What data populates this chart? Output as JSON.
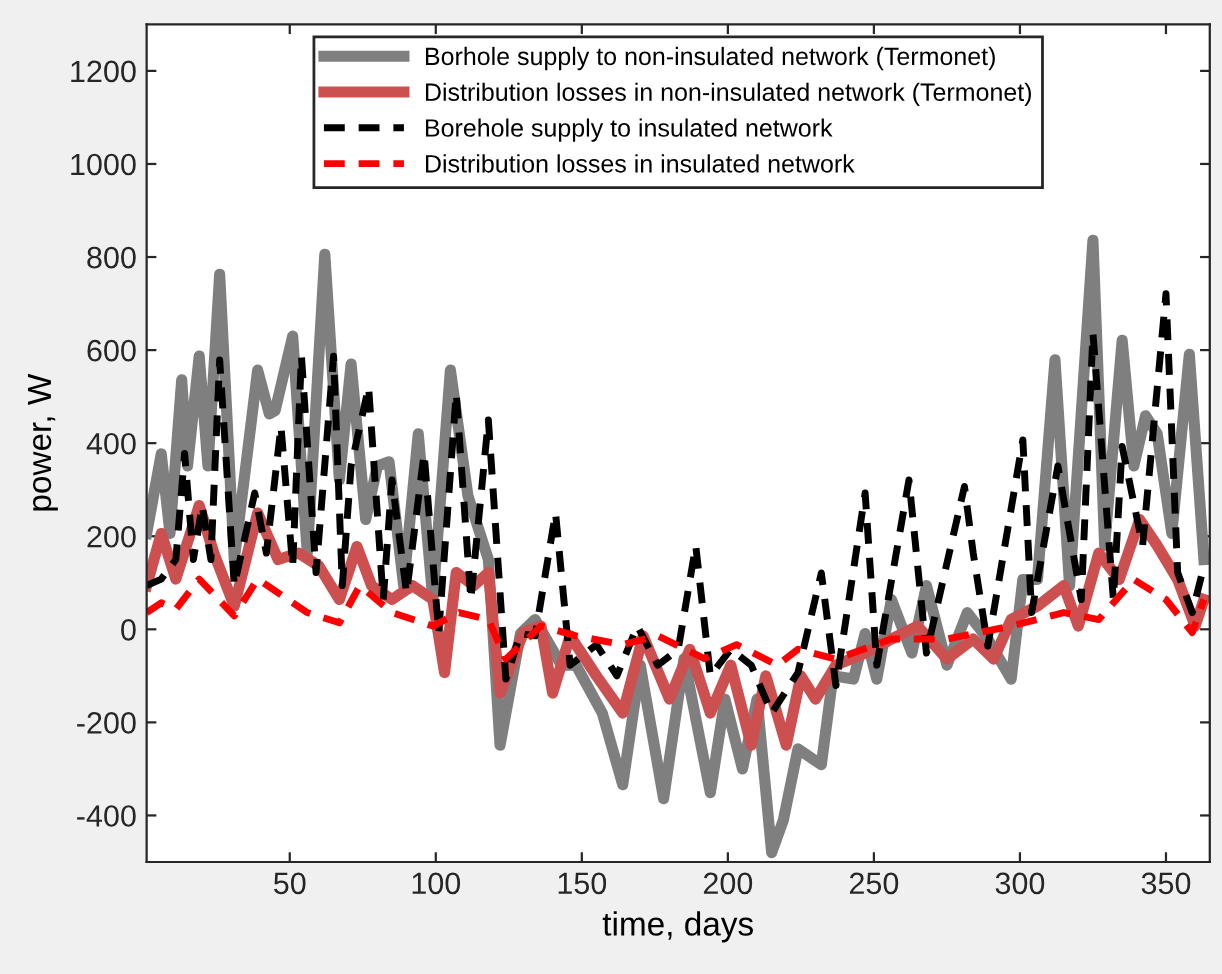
{
  "chart_data": {
    "type": "line",
    "xlabel": "time, days",
    "ylabel": "power, W",
    "xlim": [
      1,
      365
    ],
    "ylim": [
      -500,
      1300
    ],
    "xticks": [
      50,
      100,
      150,
      200,
      250,
      300,
      350
    ],
    "yticks": [
      -400,
      -200,
      0,
      200,
      400,
      600,
      800,
      1000,
      1200
    ],
    "grid": false,
    "legend": "top",
    "marker": "none",
    "series": [
      {
        "name": "Borhole supply to non-insulated network (Termonet)",
        "color": "#7f7f7f",
        "line_style": "solid",
        "x": [
          1,
          6,
          9,
          13,
          15,
          19,
          22,
          26,
          31,
          39,
          43,
          45,
          51,
          56,
          62,
          67,
          71,
          76,
          80,
          84,
          89,
          94,
          99,
          105,
          111,
          118,
          122,
          129,
          134,
          143,
          148,
          157,
          164,
          170,
          178,
          185,
          194,
          199,
          205,
          210,
          215,
          219,
          224,
          232,
          236,
          243,
          247,
          251,
          256,
          263,
          268,
          275,
          282,
          289,
          297,
          301,
          306,
          312,
          317,
          325,
          329,
          335,
          339,
          343,
          347,
          352,
          358,
          363
        ],
        "values": [
          206,
          377,
          206,
          536,
          351,
          587,
          351,
          763,
          150,
          557,
          463,
          470,
          630,
          163,
          806,
          321,
          570,
          236,
          351,
          360,
          94,
          420,
          64,
          557,
          287,
          150,
          -249,
          -9,
          21,
          -77,
          -77,
          -180,
          -334,
          -77,
          -364,
          -63,
          -351,
          -150,
          -300,
          -150,
          -480,
          -410,
          -257,
          -291,
          -100,
          -107,
          -9,
          -107,
          64,
          -51,
          94,
          -77,
          36,
          -21,
          -107,
          107,
          107,
          579,
          94,
          836,
          180,
          621,
          351,
          459,
          420,
          206,
          591,
          150
        ]
      },
      {
        "name": "Distribution losses in non-insulated network (Termonet)",
        "color": "#cc5050",
        "line_style": "solid",
        "x": [
          1,
          6,
          11,
          19,
          24,
          31,
          39,
          46,
          53,
          60,
          67,
          73,
          78,
          85,
          92,
          99,
          103,
          107,
          113,
          118,
          122,
          130,
          136,
          140,
          146,
          155,
          164,
          171,
          180,
          187,
          194,
          201,
          208,
          213,
          220,
          225,
          230,
          237,
          247,
          256,
          265,
          275,
          284,
          291,
          297,
          306,
          315,
          320,
          327,
          334,
          341,
          347,
          354,
          360,
          363
        ],
        "values": [
          94,
          206,
          108,
          266,
          164,
          50,
          250,
          150,
          164,
          136,
          64,
          178,
          94,
          64,
          94,
          64,
          -93,
          122,
          94,
          122,
          -137,
          -7,
          7,
          -137,
          -14,
          -100,
          -180,
          -14,
          -150,
          -43,
          -180,
          -77,
          -249,
          -100,
          -249,
          -100,
          -150,
          -77,
          -51,
          -21,
          7,
          -64,
          -21,
          -64,
          21,
          50,
          94,
          7,
          164,
          107,
          236,
          180,
          107,
          7,
          64
        ]
      },
      {
        "name": "Borehole supply to insulated network",
        "color": "#000000",
        "line_style": "dashed",
        "x": [
          1,
          6,
          11,
          14,
          17,
          20,
          23,
          26,
          31,
          38,
          42,
          47,
          51,
          54,
          59,
          65,
          68,
          71,
          77,
          82,
          85,
          90,
          96,
          101,
          107,
          112,
          118,
          124,
          129,
          134,
          141,
          146,
          155,
          162,
          169,
          176,
          183,
          189,
          194,
          201,
          208,
          215,
          224,
          232,
          237,
          247,
          251,
          262,
          268,
          281,
          284,
          289,
          301,
          304,
          313,
          321,
          325,
          332,
          335,
          342,
          350,
          354,
          359,
          363
        ],
        "values": [
          94,
          108,
          150,
          378,
          150,
          266,
          150,
          579,
          94,
          293,
          164,
          436,
          136,
          587,
          122,
          587,
          94,
          351,
          521,
          64,
          321,
          78,
          378,
          -7,
          507,
          64,
          450,
          -107,
          -9,
          -14,
          250,
          -77,
          -33,
          -100,
          7,
          -77,
          -43,
          180,
          -100,
          -43,
          -77,
          -180,
          -93,
          121,
          -121,
          293,
          -77,
          321,
          -51,
          307,
          164,
          -36,
          407,
          36,
          351,
          64,
          636,
          64,
          393,
          180,
          721,
          122,
          36,
          136
        ]
      },
      {
        "name": "Distribution losses in insulated network",
        "color": "#ff0000",
        "line_style": "dashed",
        "x": [
          1,
          6,
          11,
          19,
          31,
          39,
          56,
          67,
          74,
          85,
          99,
          108,
          118,
          124,
          136,
          148,
          164,
          176,
          192,
          203,
          217,
          224,
          237,
          256,
          275,
          297,
          315,
          327,
          339,
          350,
          359,
          363
        ],
        "values": [
          36,
          57,
          43,
          108,
          29,
          108,
          36,
          14,
          94,
          36,
          7,
          36,
          21,
          -64,
          7,
          -14,
          -33,
          -14,
          -63,
          -33,
          -77,
          -43,
          -64,
          -21,
          -21,
          7,
          36,
          21,
          107,
          64,
          -7,
          64
        ]
      }
    ]
  }
}
